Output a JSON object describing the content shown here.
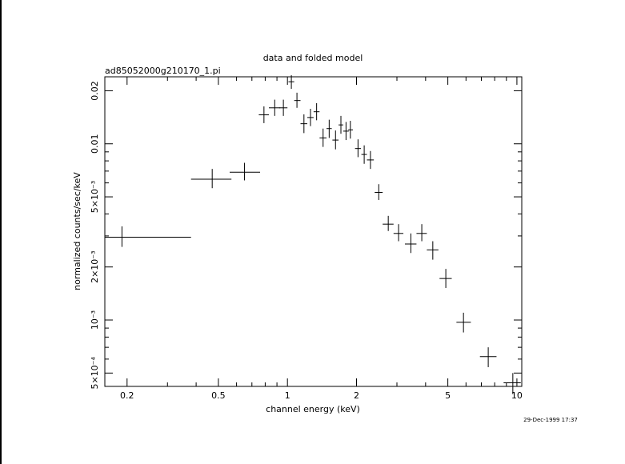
{
  "chart_data": {
    "type": "scatter",
    "title": "data and folded model",
    "subtitle": "ad85052000g210170_1.pi",
    "xlabel": "channel energy (keV)",
    "ylabel": "normalized counts/sec/keV",
    "timestamp": "29-Dec-1999 17:37",
    "x_scale": "log",
    "y_scale": "log",
    "xlim": [
      0.16,
      10.5
    ],
    "ylim": [
      0.00042,
      0.024
    ],
    "grid": false,
    "x_ticks": [
      {
        "value": 0.2,
        "label": "0.2"
      },
      {
        "value": 0.5,
        "label": "0.5"
      },
      {
        "value": 1,
        "label": "1"
      },
      {
        "value": 2,
        "label": "2"
      },
      {
        "value": 5,
        "label": "5"
      },
      {
        "value": 10,
        "label": "10"
      }
    ],
    "y_ticks": [
      {
        "value": 0.02,
        "label": "0.02"
      },
      {
        "value": 0.01,
        "label": "0.01"
      },
      {
        "value": 0.005,
        "label": "5×10⁻³"
      },
      {
        "value": 0.002,
        "label": "2×10⁻³"
      },
      {
        "value": 0.001,
        "label": "10⁻³"
      },
      {
        "value": 0.0005,
        "label": "5×10⁻⁴"
      }
    ],
    "series": [
      {
        "points": [
          {
            "x": 0.19,
            "xlo": 0.16,
            "xhi": 0.38,
            "y": 0.00295,
            "ylo": 0.0026,
            "yhi": 0.0034
          },
          {
            "x": 0.47,
            "xlo": 0.38,
            "xhi": 0.57,
            "y": 0.0063,
            "ylo": 0.0056,
            "yhi": 0.0072
          },
          {
            "x": 0.65,
            "xlo": 0.56,
            "xhi": 0.76,
            "y": 0.0069,
            "ylo": 0.0062,
            "yhi": 0.0078
          },
          {
            "x": 0.79,
            "xlo": 0.75,
            "xhi": 0.83,
            "y": 0.0146,
            "ylo": 0.0131,
            "yhi": 0.0163
          },
          {
            "x": 0.88,
            "xlo": 0.83,
            "xhi": 0.93,
            "y": 0.016,
            "ylo": 0.0144,
            "yhi": 0.0178
          },
          {
            "x": 0.96,
            "xlo": 0.92,
            "xhi": 1.0,
            "y": 0.016,
            "ylo": 0.0144,
            "yhi": 0.0178
          },
          {
            "x": 1.04,
            "xlo": 1.01,
            "xhi": 1.07,
            "y": 0.0225,
            "ylo": 0.0205,
            "yhi": 0.0245
          },
          {
            "x": 1.1,
            "xlo": 1.07,
            "xhi": 1.14,
            "y": 0.0176,
            "ylo": 0.016,
            "yhi": 0.0195
          },
          {
            "x": 1.18,
            "xlo": 1.14,
            "xhi": 1.22,
            "y": 0.013,
            "ylo": 0.0115,
            "yhi": 0.0147
          },
          {
            "x": 1.26,
            "xlo": 1.22,
            "xhi": 1.3,
            "y": 0.0141,
            "ylo": 0.0126,
            "yhi": 0.0158
          },
          {
            "x": 1.34,
            "xlo": 1.3,
            "xhi": 1.38,
            "y": 0.0152,
            "ylo": 0.0136,
            "yhi": 0.017
          },
          {
            "x": 1.43,
            "xlo": 1.38,
            "xhi": 1.48,
            "y": 0.0108,
            "ylo": 0.0096,
            "yhi": 0.0122
          },
          {
            "x": 1.52,
            "xlo": 1.48,
            "xhi": 1.56,
            "y": 0.0122,
            "ylo": 0.0108,
            "yhi": 0.0137
          },
          {
            "x": 1.62,
            "xlo": 1.57,
            "xhi": 1.67,
            "y": 0.0105,
            "ylo": 0.0093,
            "yhi": 0.0119
          },
          {
            "x": 1.71,
            "xlo": 1.67,
            "xhi": 1.75,
            "y": 0.0128,
            "ylo": 0.0114,
            "yhi": 0.0144
          },
          {
            "x": 1.8,
            "xlo": 1.75,
            "xhi": 1.85,
            "y": 0.0118,
            "ylo": 0.0105,
            "yhi": 0.0133
          },
          {
            "x": 1.88,
            "xlo": 1.84,
            "xhi": 1.93,
            "y": 0.012,
            "ylo": 0.0107,
            "yhi": 0.0135
          },
          {
            "x": 2.03,
            "xlo": 1.97,
            "xhi": 2.09,
            "y": 0.0094,
            "ylo": 0.0084,
            "yhi": 0.0106
          },
          {
            "x": 2.16,
            "xlo": 2.1,
            "xhi": 2.22,
            "y": 0.0087,
            "ylo": 0.0077,
            "yhi": 0.0098
          },
          {
            "x": 2.3,
            "xlo": 2.22,
            "xhi": 2.38,
            "y": 0.0081,
            "ylo": 0.0072,
            "yhi": 0.0091
          },
          {
            "x": 2.5,
            "xlo": 2.4,
            "xhi": 2.6,
            "y": 0.0053,
            "ylo": 0.0048,
            "yhi": 0.0059
          },
          {
            "x": 2.75,
            "xlo": 2.6,
            "xhi": 2.9,
            "y": 0.0035,
            "ylo": 0.0032,
            "yhi": 0.0039
          },
          {
            "x": 3.05,
            "xlo": 2.9,
            "xhi": 3.2,
            "y": 0.0031,
            "ylo": 0.0028,
            "yhi": 0.0035
          },
          {
            "x": 3.45,
            "xlo": 3.25,
            "xhi": 3.65,
            "y": 0.0027,
            "ylo": 0.0024,
            "yhi": 0.0031
          },
          {
            "x": 3.85,
            "xlo": 3.65,
            "xhi": 4.05,
            "y": 0.0031,
            "ylo": 0.0028,
            "yhi": 0.0035
          },
          {
            "x": 4.3,
            "xlo": 4.05,
            "xhi": 4.55,
            "y": 0.0025,
            "ylo": 0.0022,
            "yhi": 0.0028
          },
          {
            "x": 4.9,
            "xlo": 4.6,
            "xhi": 5.2,
            "y": 0.00172,
            "ylo": 0.00152,
            "yhi": 0.00195
          },
          {
            "x": 5.85,
            "xlo": 5.45,
            "xhi": 6.3,
            "y": 0.00097,
            "ylo": 0.00085,
            "yhi": 0.0011
          },
          {
            "x": 7.5,
            "xlo": 6.9,
            "xhi": 8.15,
            "y": 0.00062,
            "ylo": 0.00054,
            "yhi": 0.0007
          },
          {
            "x": 9.6,
            "xlo": 8.75,
            "xhi": 10.4,
            "y": 0.00044,
            "ylo": 0.00038,
            "yhi": 0.0005
          }
        ]
      }
    ]
  }
}
